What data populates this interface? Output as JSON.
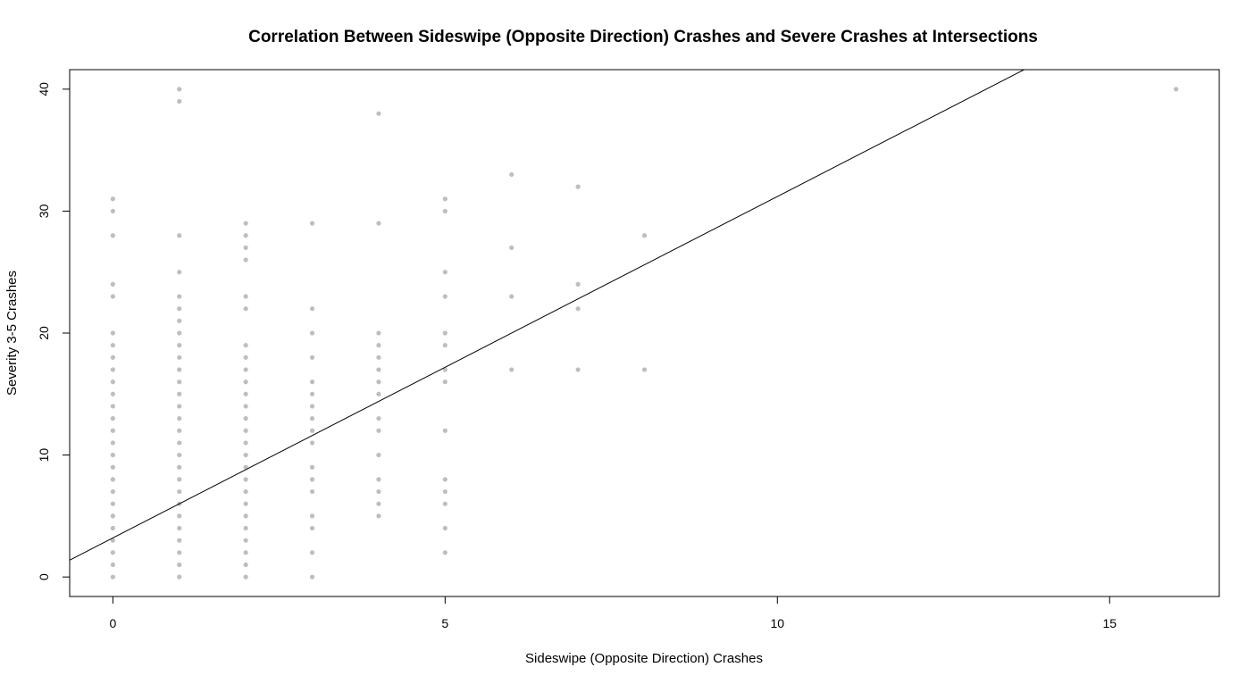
{
  "chart_data": {
    "type": "scatter",
    "title": "Correlation Between Sideswipe (Opposite Direction) Crashes and Severe Crashes at Intersections",
    "xlabel": "Sideswipe (Opposite Direction) Crashes",
    "ylabel": "Severity 3-5 Crashes",
    "xlim": [
      -0.65,
      16.65
    ],
    "ylim": [
      -1.6,
      41.6
    ],
    "xticks": [
      0,
      5,
      10,
      15
    ],
    "yticks": [
      0,
      10,
      20,
      30,
      40
    ],
    "grid": false,
    "legend": "none",
    "point_color": "#bebebe",
    "line_color": "#000000",
    "trend_line": {
      "intercept": 3.2,
      "slope": 2.8
    },
    "points": [
      [
        0,
        0
      ],
      [
        0,
        1
      ],
      [
        0,
        2
      ],
      [
        0,
        3
      ],
      [
        0,
        4
      ],
      [
        0,
        5
      ],
      [
        0,
        6
      ],
      [
        0,
        7
      ],
      [
        0,
        8
      ],
      [
        0,
        9
      ],
      [
        0,
        10
      ],
      [
        0,
        11
      ],
      [
        0,
        12
      ],
      [
        0,
        13
      ],
      [
        0,
        14
      ],
      [
        0,
        15
      ],
      [
        0,
        16
      ],
      [
        0,
        17
      ],
      [
        0,
        18
      ],
      [
        0,
        19
      ],
      [
        0,
        20
      ],
      [
        0,
        23
      ],
      [
        0,
        24
      ],
      [
        0,
        28
      ],
      [
        0,
        30
      ],
      [
        0,
        31
      ],
      [
        1,
        0
      ],
      [
        1,
        1
      ],
      [
        1,
        2
      ],
      [
        1,
        3
      ],
      [
        1,
        4
      ],
      [
        1,
        5
      ],
      [
        1,
        6
      ],
      [
        1,
        7
      ],
      [
        1,
        8
      ],
      [
        1,
        9
      ],
      [
        1,
        10
      ],
      [
        1,
        11
      ],
      [
        1,
        12
      ],
      [
        1,
        13
      ],
      [
        1,
        14
      ],
      [
        1,
        15
      ],
      [
        1,
        16
      ],
      [
        1,
        17
      ],
      [
        1,
        18
      ],
      [
        1,
        19
      ],
      [
        1,
        20
      ],
      [
        1,
        21
      ],
      [
        1,
        22
      ],
      [
        1,
        23
      ],
      [
        1,
        25
      ],
      [
        1,
        28
      ],
      [
        1,
        39
      ],
      [
        1,
        40
      ],
      [
        2,
        0
      ],
      [
        2,
        1
      ],
      [
        2,
        2
      ],
      [
        2,
        3
      ],
      [
        2,
        4
      ],
      [
        2,
        5
      ],
      [
        2,
        6
      ],
      [
        2,
        7
      ],
      [
        2,
        8
      ],
      [
        2,
        9
      ],
      [
        2,
        10
      ],
      [
        2,
        11
      ],
      [
        2,
        12
      ],
      [
        2,
        13
      ],
      [
        2,
        14
      ],
      [
        2,
        15
      ],
      [
        2,
        16
      ],
      [
        2,
        17
      ],
      [
        2,
        18
      ],
      [
        2,
        19
      ],
      [
        2,
        22
      ],
      [
        2,
        23
      ],
      [
        2,
        26
      ],
      [
        2,
        27
      ],
      [
        2,
        28
      ],
      [
        2,
        29
      ],
      [
        3,
        0
      ],
      [
        3,
        2
      ],
      [
        3,
        4
      ],
      [
        3,
        5
      ],
      [
        3,
        7
      ],
      [
        3,
        8
      ],
      [
        3,
        9
      ],
      [
        3,
        11
      ],
      [
        3,
        12
      ],
      [
        3,
        13
      ],
      [
        3,
        14
      ],
      [
        3,
        15
      ],
      [
        3,
        16
      ],
      [
        3,
        18
      ],
      [
        3,
        20
      ],
      [
        3,
        22
      ],
      [
        3,
        29
      ],
      [
        4,
        5
      ],
      [
        4,
        6
      ],
      [
        4,
        7
      ],
      [
        4,
        8
      ],
      [
        4,
        10
      ],
      [
        4,
        12
      ],
      [
        4,
        13
      ],
      [
        4,
        15
      ],
      [
        4,
        16
      ],
      [
        4,
        17
      ],
      [
        4,
        18
      ],
      [
        4,
        19
      ],
      [
        4,
        20
      ],
      [
        4,
        29
      ],
      [
        4,
        38
      ],
      [
        5,
        2
      ],
      [
        5,
        4
      ],
      [
        5,
        6
      ],
      [
        5,
        7
      ],
      [
        5,
        8
      ],
      [
        5,
        12
      ],
      [
        5,
        16
      ],
      [
        5,
        17
      ],
      [
        5,
        19
      ],
      [
        5,
        20
      ],
      [
        5,
        23
      ],
      [
        5,
        25
      ],
      [
        5,
        30
      ],
      [
        5,
        31
      ],
      [
        6,
        17
      ],
      [
        6,
        23
      ],
      [
        6,
        27
      ],
      [
        6,
        33
      ],
      [
        7,
        17
      ],
      [
        7,
        22
      ],
      [
        7,
        24
      ],
      [
        7,
        32
      ],
      [
        8,
        17
      ],
      [
        8,
        28
      ],
      [
        16,
        40
      ]
    ]
  }
}
